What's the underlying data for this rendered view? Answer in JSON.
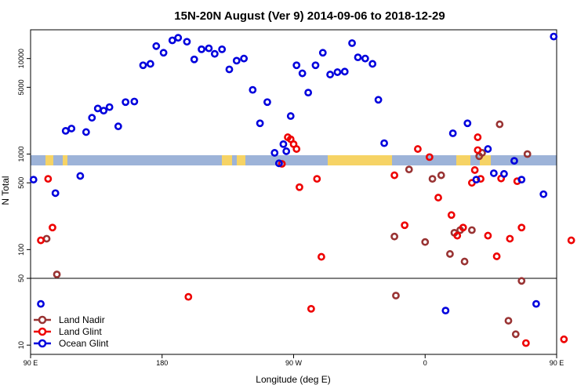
{
  "chart_data": {
    "type": "scatter",
    "title": "15N-20N August (Ver 9)   2014-09-06 to 2018-12-29",
    "xlabel": "Longitude (deg E)",
    "ylabel": "N Total",
    "xlim": [
      90,
      450
    ],
    "ylim": [
      8,
      20000
    ],
    "yscale": "log",
    "x_ticks": [
      {
        "value": 90,
        "label": "90 E"
      },
      {
        "value": 180,
        "label": "180"
      },
      {
        "value": 270,
        "label": "90 W"
      },
      {
        "value": 360,
        "label": "0"
      },
      {
        "value": 450,
        "label": "90 E"
      },
      {
        "value": 540,
        "label": "180"
      }
    ],
    "x_scale_note": "axis spans 90E eastward through 180, 90W, 0, 90E to 180",
    "y_ticks": [
      {
        "value": 10,
        "label": "10"
      },
      {
        "value": 50,
        "label": "50"
      },
      {
        "value": 100,
        "label": "100"
      },
      {
        "value": 500,
        "label": "500"
      },
      {
        "value": 1000,
        "label": "1000"
      },
      {
        "value": 5000,
        "label": "5000"
      },
      {
        "value": 10000,
        "label": "10000"
      }
    ],
    "reference_lines": [
      50
    ],
    "legend_position": "bottom-left",
    "series": [
      {
        "name": "Ocean Glint",
        "color": "#0000dd",
        "points": [
          [
            92,
            540
          ],
          [
            97,
            27
          ],
          [
            107,
            390
          ],
          [
            114,
            1750
          ],
          [
            118,
            1850
          ],
          [
            124,
            590
          ],
          [
            128,
            1700
          ],
          [
            132,
            2400
          ],
          [
            136,
            3000
          ],
          [
            140,
            2850
          ],
          [
            144,
            3100
          ],
          [
            150,
            1950
          ],
          [
            155,
            3500
          ],
          [
            161,
            3550
          ],
          [
            167,
            8500
          ],
          [
            172,
            8800
          ],
          [
            176,
            13500
          ],
          [
            181,
            11500
          ],
          [
            187,
            15500
          ],
          [
            191,
            16500
          ],
          [
            197,
            15000
          ],
          [
            202,
            9800
          ],
          [
            207,
            12500
          ],
          [
            212,
            12800
          ],
          [
            216,
            11200
          ],
          [
            221,
            12500
          ],
          [
            226,
            7700
          ],
          [
            231,
            9500
          ],
          [
            236,
            10000
          ],
          [
            242,
            4700
          ],
          [
            247,
            2100
          ],
          [
            252,
            3500
          ],
          [
            257,
            1030
          ],
          [
            260,
            800
          ],
          [
            263,
            1270
          ],
          [
            265,
            1070
          ],
          [
            268,
            2500
          ],
          [
            272,
            8500
          ],
          [
            276,
            7000
          ],
          [
            280,
            4400
          ],
          [
            285,
            8500
          ],
          [
            290,
            11500
          ],
          [
            295,
            6800
          ],
          [
            300,
            7200
          ],
          [
            305,
            7300
          ],
          [
            310,
            14500
          ],
          [
            314,
            10300
          ],
          [
            319,
            10000
          ],
          [
            324,
            8800
          ],
          [
            328,
            3700
          ],
          [
            332,
            1300
          ],
          [
            374,
            23
          ],
          [
            379,
            1650
          ],
          [
            389,
            2100
          ],
          [
            395,
            540
          ],
          [
            403,
            1130
          ],
          [
            407,
            630
          ],
          [
            414,
            620
          ],
          [
            421,
            850
          ],
          [
            426,
            540
          ],
          [
            436,
            27
          ],
          [
            441,
            380
          ],
          [
            448,
            17000
          ]
        ]
      },
      {
        "name": "Land Glint",
        "color": "#ee0000",
        "points": [
          [
            97,
            125
          ],
          [
            102,
            550
          ],
          [
            105,
            170
          ],
          [
            198,
            32
          ],
          [
            262,
            790
          ],
          [
            266,
            1500
          ],
          [
            268,
            1430
          ],
          [
            270,
            1270
          ],
          [
            272,
            1130
          ],
          [
            274,
            450
          ],
          [
            282,
            24
          ],
          [
            286,
            550
          ],
          [
            289,
            84
          ],
          [
            339,
            600
          ],
          [
            346,
            180
          ],
          [
            355,
            1130
          ],
          [
            363,
            930
          ],
          [
            369,
            350
          ],
          [
            378,
            230
          ],
          [
            382,
            140
          ],
          [
            386,
            170
          ],
          [
            392,
            500
          ],
          [
            394,
            680
          ],
          [
            396,
            1500
          ],
          [
            396,
            1100
          ],
          [
            398,
            550
          ],
          [
            403,
            140
          ],
          [
            409,
            85
          ],
          [
            412,
            555
          ],
          [
            418,
            130
          ],
          [
            423,
            520
          ],
          [
            426,
            170
          ],
          [
            429,
            10.5
          ],
          [
            455,
            11.5
          ],
          [
            460,
            125
          ]
        ]
      },
      {
        "name": "Land Nadir",
        "color": "#993333",
        "points": [
          [
            101,
            130
          ],
          [
            108,
            55
          ],
          [
            339,
            137
          ],
          [
            340,
            33
          ],
          [
            349,
            690
          ],
          [
            360,
            120
          ],
          [
            365,
            550
          ],
          [
            371,
            600
          ],
          [
            377,
            90
          ],
          [
            380,
            150
          ],
          [
            384,
            160
          ],
          [
            387,
            75
          ],
          [
            392,
            160
          ],
          [
            397,
            950
          ],
          [
            399,
            1030
          ],
          [
            411,
            2050
          ],
          [
            417,
            18
          ],
          [
            422,
            13
          ],
          [
            426,
            47
          ],
          [
            430,
            1000
          ]
        ]
      }
    ]
  }
}
